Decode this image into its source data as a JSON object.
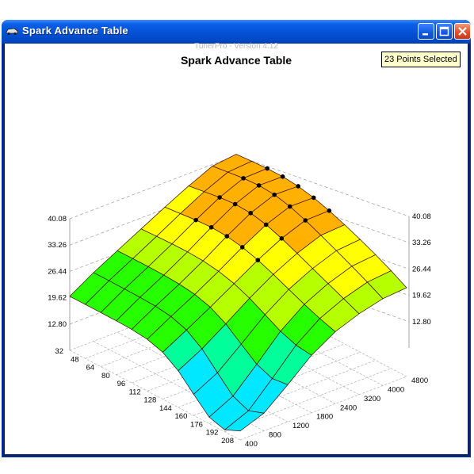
{
  "window": {
    "title": "Spark Advance Table",
    "icon": "tunerpro-car-icon",
    "buttons": [
      "minimize-icon",
      "maximize-icon",
      "close-icon"
    ]
  },
  "chart": {
    "version_text": "TunerPro - Version 4.12",
    "title": "Spark Advance Table",
    "selection_badge": "23 Points Selected"
  },
  "chart_data": {
    "type": "surface3d",
    "title": "Spark Advance Table",
    "z_ticks": [
      "12.80",
      "19.62",
      "26.44",
      "33.26",
      "40.08"
    ],
    "z_range": [
      6,
      40.08
    ],
    "map_axis_ticks": [
      "32",
      "48",
      "64",
      "80",
      "96",
      "112",
      "128",
      "144",
      "160",
      "176",
      "192",
      "208"
    ],
    "rpm_axis_ticks": [
      "400",
      "800",
      "1200",
      "1800",
      "2400",
      "3200",
      "4000",
      "4800"
    ],
    "colorscale": [
      "#00e8ff",
      "#00ff9a",
      "#27ff00",
      "#b6ff00",
      "#ffff00",
      "#ffb000",
      "#ff5a00"
    ],
    "selected_points": 23
  }
}
